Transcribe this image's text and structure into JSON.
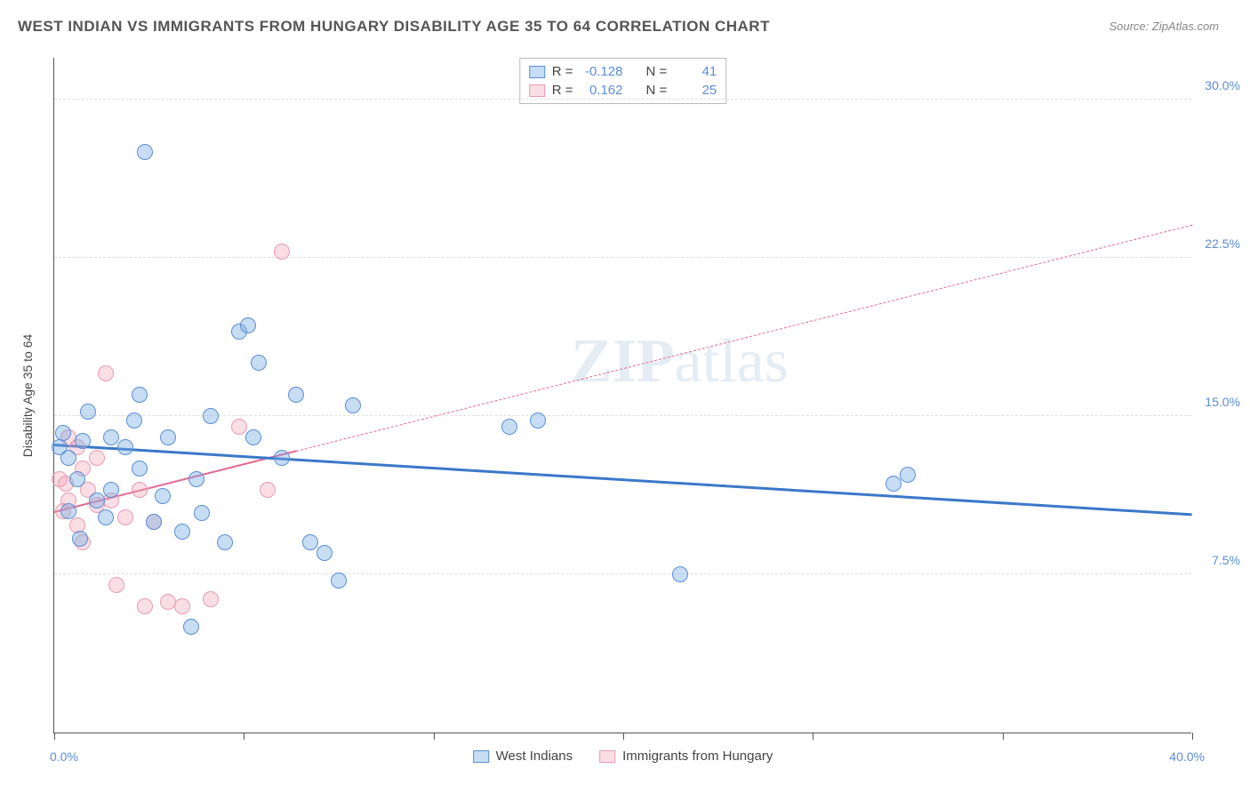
{
  "chart": {
    "type": "scatter",
    "title": "WEST INDIAN VS IMMIGRANTS FROM HUNGARY DISABILITY AGE 35 TO 64 CORRELATION CHART",
    "source": "Source: ZipAtlas.com",
    "ylabel": "Disability Age 35 to 64",
    "xlim": [
      0,
      40
    ],
    "ylim": [
      0,
      32
    ],
    "xtick_positions": [
      0,
      6.67,
      13.33,
      20,
      26.67,
      33.33,
      40
    ],
    "xtick_labels": {
      "left": "0.0%",
      "right": "40.0%"
    },
    "ytick_positions": [
      7.5,
      15.0,
      22.5,
      30.0
    ],
    "ytick_labels": [
      "7.5%",
      "15.0%",
      "22.5%",
      "30.0%"
    ],
    "background_color": "#ffffff",
    "grid_color": "#dddddd",
    "axis_color": "#555555",
    "marker_radius": 9,
    "series": {
      "blue": {
        "label": "West Indians",
        "color_fill": "rgba(116,170,224,0.4)",
        "color_stroke": "#5b8dd6",
        "R": "-0.128",
        "N": "41",
        "trend": {
          "x1": 0,
          "y1": 13.6,
          "x2": 40,
          "y2": 10.3,
          "color": "#3b78c9",
          "width": 2.5,
          "dash": false,
          "solid_until_x": 40
        },
        "points": [
          {
            "x": 0.2,
            "y": 13.5
          },
          {
            "x": 0.3,
            "y": 14.2
          },
          {
            "x": 0.5,
            "y": 13.0
          },
          {
            "x": 0.8,
            "y": 12.0
          },
          {
            "x": 0.5,
            "y": 10.5
          },
          {
            "x": 1.0,
            "y": 13.8
          },
          {
            "x": 1.5,
            "y": 11.0
          },
          {
            "x": 2.0,
            "y": 14.0
          },
          {
            "x": 2.5,
            "y": 13.5
          },
          {
            "x": 2.0,
            "y": 11.5
          },
          {
            "x": 3.0,
            "y": 16.0
          },
          {
            "x": 3.0,
            "y": 12.5
          },
          {
            "x": 3.5,
            "y": 10.0
          },
          {
            "x": 3.2,
            "y": 27.5
          },
          {
            "x": 4.0,
            "y": 14.0
          },
          {
            "x": 4.5,
            "y": 9.5
          },
          {
            "x": 4.8,
            "y": 5.0
          },
          {
            "x": 5.0,
            "y": 12.0
          },
          {
            "x": 5.5,
            "y": 15.0
          },
          {
            "x": 6.0,
            "y": 9.0
          },
          {
            "x": 6.5,
            "y": 19.0
          },
          {
            "x": 6.8,
            "y": 19.3
          },
          {
            "x": 7.0,
            "y": 14.0
          },
          {
            "x": 7.2,
            "y": 17.5
          },
          {
            "x": 8.0,
            "y": 13.0
          },
          {
            "x": 8.5,
            "y": 16.0
          },
          {
            "x": 9.0,
            "y": 9.0
          },
          {
            "x": 9.5,
            "y": 8.5
          },
          {
            "x": 10.0,
            "y": 7.2
          },
          {
            "x": 10.5,
            "y": 15.5
          },
          {
            "x": 16.0,
            "y": 14.5
          },
          {
            "x": 17.0,
            "y": 14.8
          },
          {
            "x": 22.0,
            "y": 7.5
          },
          {
            "x": 29.5,
            "y": 11.8
          },
          {
            "x": 30.0,
            "y": 12.2
          },
          {
            "x": 1.2,
            "y": 15.2
          },
          {
            "x": 2.8,
            "y": 14.8
          },
          {
            "x": 1.8,
            "y": 10.2
          },
          {
            "x": 0.9,
            "y": 9.2
          },
          {
            "x": 3.8,
            "y": 11.2
          },
          {
            "x": 5.2,
            "y": 10.4
          }
        ]
      },
      "pink": {
        "label": "Immigrants from Hungary",
        "color_fill": "rgba(240,160,180,0.35)",
        "color_stroke": "#e79bb1",
        "R": "0.162",
        "N": "25",
        "trend": {
          "x1": 0,
          "y1": 10.4,
          "x2": 40,
          "y2": 24.0,
          "color": "#e36a93",
          "width": 2,
          "dash": true,
          "solid_until_x": 8.5
        },
        "points": [
          {
            "x": 0.2,
            "y": 12.0
          },
          {
            "x": 0.3,
            "y": 10.5
          },
          {
            "x": 0.5,
            "y": 11.0
          },
          {
            "x": 0.5,
            "y": 14.0
          },
          {
            "x": 0.8,
            "y": 13.5
          },
          {
            "x": 0.8,
            "y": 9.8
          },
          {
            "x": 1.0,
            "y": 12.5
          },
          {
            "x": 1.2,
            "y": 11.5
          },
          {
            "x": 1.5,
            "y": 10.8
          },
          {
            "x": 1.5,
            "y": 13.0
          },
          {
            "x": 1.8,
            "y": 17.0
          },
          {
            "x": 2.0,
            "y": 11.0
          },
          {
            "x": 2.2,
            "y": 7.0
          },
          {
            "x": 2.5,
            "y": 10.2
          },
          {
            "x": 3.0,
            "y": 11.5
          },
          {
            "x": 3.2,
            "y": 6.0
          },
          {
            "x": 3.5,
            "y": 10.0
          },
          {
            "x": 4.0,
            "y": 6.2
          },
          {
            "x": 4.5,
            "y": 6.0
          },
          {
            "x": 5.5,
            "y": 6.3
          },
          {
            "x": 6.5,
            "y": 14.5
          },
          {
            "x": 7.5,
            "y": 11.5
          },
          {
            "x": 8.0,
            "y": 22.8
          },
          {
            "x": 1.0,
            "y": 9.0
          },
          {
            "x": 0.4,
            "y": 11.8
          }
        ]
      }
    },
    "watermark": {
      "bold": "ZIP",
      "rest": "atlas"
    },
    "legend_top": {
      "R_label": "R =",
      "N_label": "N ="
    }
  }
}
